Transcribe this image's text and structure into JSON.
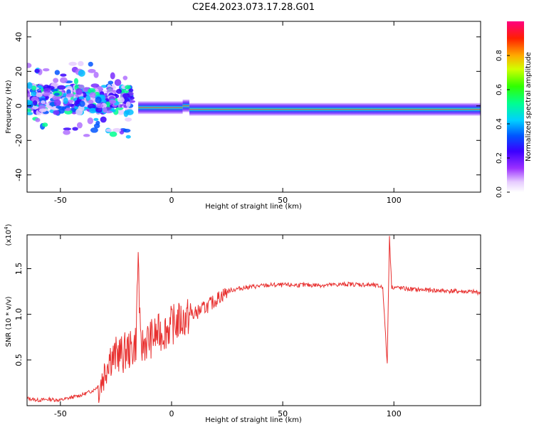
{
  "title": "C2E4.2023.073.17.28.G01",
  "chart_data": [
    {
      "type": "heatmap",
      "xlabel": "Height of straight line (km)",
      "ylabel": "Frequency (Hz)",
      "xlim": [
        -65,
        139
      ],
      "ylim": [
        -50,
        49
      ],
      "xticks": [
        -50,
        0,
        50,
        100
      ],
      "yticks": [
        -40,
        -20,
        0,
        20,
        40
      ],
      "colorbar": {
        "label": "Normalized spectral amplitude",
        "range": [
          0.0,
          1.0
        ],
        "ticks": [
          "0.0",
          "0.2",
          "0.4",
          "0.6",
          "0.8"
        ]
      },
      "ridge": [
        {
          "x": -63,
          "y": 3
        },
        {
          "x": -50,
          "y": 4
        },
        {
          "x": -40,
          "y": 5
        },
        {
          "x": -30,
          "y": 4
        },
        {
          "x": -20,
          "y": 1
        },
        {
          "x": -15,
          "y": -1
        },
        {
          "x": 5,
          "y": 0
        },
        {
          "x": 8,
          "y": -2
        },
        {
          "x": 90,
          "y": -2
        },
        {
          "x": 139,
          "y": -2
        }
      ]
    },
    {
      "type": "line",
      "xlabel": "Height of straight line (km)",
      "ylabel": "SNR (10 * v/v)",
      "yscale_note": "(x10",
      "yscale_exp": "4",
      "xlim": [
        -65,
        139
      ],
      "ylim": [
        0.0,
        1.87
      ],
      "xticks": [
        -50,
        0,
        50,
        100
      ],
      "yticks": [
        "0.5",
        "1.0",
        "1.5"
      ],
      "series": [
        {
          "color": "#e8302f",
          "points": [
            [
              -65,
              0.08
            ],
            [
              -60,
              0.06
            ],
            [
              -55,
              0.07
            ],
            [
              -50,
              0.06
            ],
            [
              -45,
              0.09
            ],
            [
              -40,
              0.12
            ],
            [
              -35,
              0.17
            ],
            [
              -32,
              0.24
            ],
            [
              -30,
              0.38
            ],
            [
              -28,
              0.55
            ],
            [
              -26,
              0.52
            ],
            [
              -24,
              0.58
            ],
            [
              -22,
              0.55
            ],
            [
              -20,
              0.62
            ],
            [
              -18,
              0.6
            ],
            [
              -16,
              0.7
            ],
            [
              -15,
              1.68
            ],
            [
              -14,
              0.62
            ],
            [
              -12,
              0.7
            ],
            [
              -10,
              0.72
            ],
            [
              -8,
              0.76
            ],
            [
              -5,
              0.8
            ],
            [
              -2,
              0.84
            ],
            [
              0,
              0.88
            ],
            [
              3,
              0.92
            ],
            [
              6,
              0.95
            ],
            [
              10,
              1.0
            ],
            [
              14,
              1.06
            ],
            [
              18,
              1.12
            ],
            [
              22,
              1.2
            ],
            [
              26,
              1.26
            ],
            [
              30,
              1.28
            ],
            [
              35,
              1.3
            ],
            [
              40,
              1.31
            ],
            [
              45,
              1.32
            ],
            [
              50,
              1.32
            ],
            [
              60,
              1.32
            ],
            [
              70,
              1.32
            ],
            [
              80,
              1.33
            ],
            [
              90,
              1.32
            ],
            [
              95,
              1.3
            ],
            [
              97,
              0.45
            ],
            [
              98,
              1.86
            ],
            [
              99,
              1.3
            ],
            [
              105,
              1.28
            ],
            [
              110,
              1.27
            ],
            [
              120,
              1.26
            ],
            [
              130,
              1.25
            ],
            [
              139,
              1.24
            ]
          ]
        }
      ]
    }
  ]
}
